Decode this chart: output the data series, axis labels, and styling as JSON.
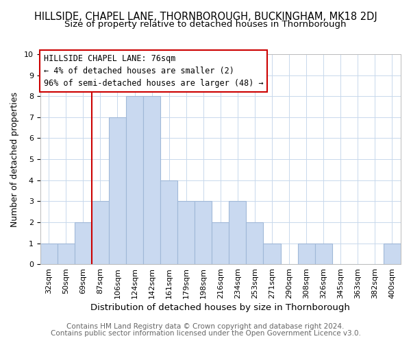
{
  "title": "HILLSIDE, CHAPEL LANE, THORNBOROUGH, BUCKINGHAM, MK18 2DJ",
  "subtitle": "Size of property relative to detached houses in Thornborough",
  "xlabel": "Distribution of detached houses by size in Thornborough",
  "ylabel": "Number of detached properties",
  "bar_labels": [
    "32sqm",
    "50sqm",
    "69sqm",
    "87sqm",
    "106sqm",
    "124sqm",
    "142sqm",
    "161sqm",
    "179sqm",
    "198sqm",
    "216sqm",
    "234sqm",
    "253sqm",
    "271sqm",
    "290sqm",
    "308sqm",
    "326sqm",
    "345sqm",
    "363sqm",
    "382sqm",
    "400sqm"
  ],
  "bar_heights": [
    1,
    1,
    2,
    3,
    7,
    8,
    8,
    4,
    3,
    3,
    2,
    3,
    2,
    1,
    0,
    1,
    1,
    0,
    0,
    0,
    1
  ],
  "bar_color": "#c9d9f0",
  "bar_edge_color": "#a0b8d8",
  "highlight_index": 2,
  "highlight_color": "#cc0000",
  "ylim": [
    0,
    10
  ],
  "yticks": [
    0,
    1,
    2,
    3,
    4,
    5,
    6,
    7,
    8,
    9,
    10
  ],
  "annotation_title": "HILLSIDE CHAPEL LANE: 76sqm",
  "annotation_line1": "← 4% of detached houses are smaller (2)",
  "annotation_line2": "96% of semi-detached houses are larger (48) →",
  "annotation_box_color": "#ffffff",
  "annotation_box_edge": "#cc0000",
  "footer1": "Contains HM Land Registry data © Crown copyright and database right 2024.",
  "footer2": "Contains public sector information licensed under the Open Government Licence v3.0.",
  "bg_color": "#ffffff",
  "grid_color": "#c8d8ec",
  "title_fontsize": 10.5,
  "subtitle_fontsize": 9.5,
  "xlabel_fontsize": 9.5,
  "ylabel_fontsize": 9,
  "tick_fontsize": 8,
  "footer_fontsize": 7.5,
  "annot_fontsize": 8.5
}
